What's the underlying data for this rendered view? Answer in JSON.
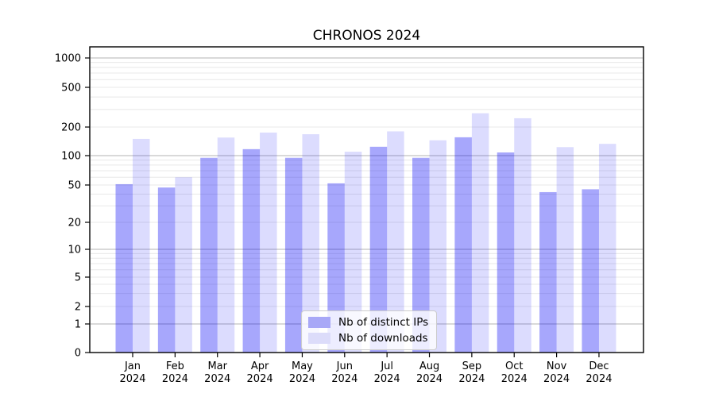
{
  "figure": {
    "background": "#ffffff"
  },
  "chart_data": {
    "type": "bar",
    "title": "CHRONOS 2024",
    "categories": [
      "Jan",
      "Feb",
      "Mar",
      "Apr",
      "May",
      "Jun",
      "Jul",
      "Aug",
      "Sep",
      "Oct",
      "Nov",
      "Dec"
    ],
    "category_year": "2024",
    "series": [
      {
        "name": "Nb of distinct IPs",
        "color": "rgba(0,0,245,0.345)",
        "solid_color": "#a8a8f7",
        "values": [
          51,
          47,
          95,
          117,
          95,
          52,
          124,
          95,
          156,
          108,
          42,
          45
        ]
      },
      {
        "name": "Nb of downloads",
        "color": "rgba(15,15,245,0.145)",
        "solid_color": "#dcdcfa",
        "values": [
          150,
          60,
          155,
          175,
          168,
          110,
          180,
          145,
          275,
          245,
          123,
          133
        ]
      }
    ],
    "xlabel": "",
    "ylabel": "",
    "yscale": "symlog",
    "y_ticks": [
      0,
      1,
      2,
      5,
      10,
      20,
      50,
      100,
      200,
      500,
      1000
    ],
    "ylim": [
      0,
      1200
    ],
    "grid": "horizontal major+minor",
    "legend_position": "lower center"
  },
  "axis_colors": {
    "frame": "#000000",
    "major_grid": "#b3b3b3",
    "minor_grid": "#e8e8e8",
    "tick_label": "#000000"
  }
}
